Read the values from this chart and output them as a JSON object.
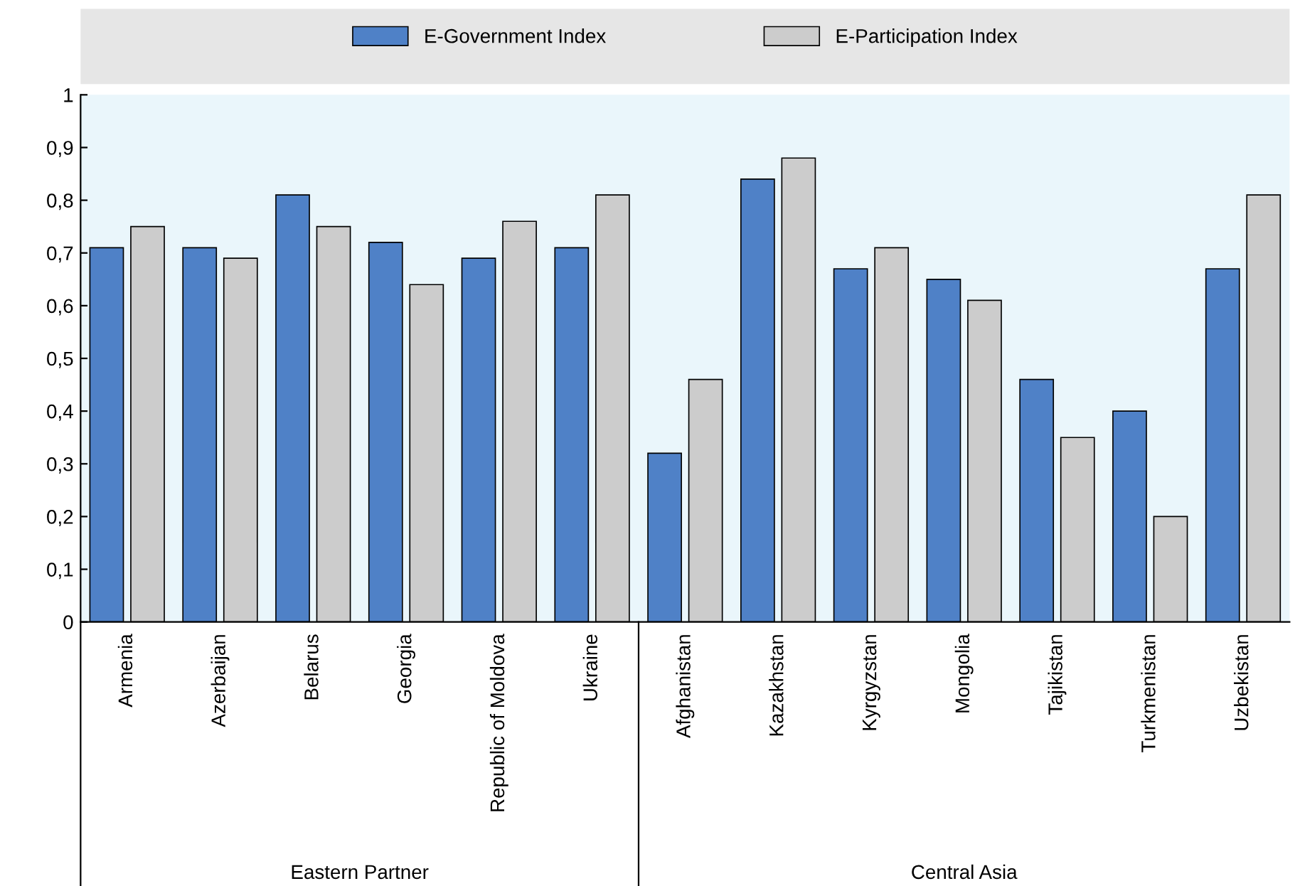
{
  "chart_data": {
    "type": "bar",
    "categories": [
      "Armenia",
      "Azerbaijan",
      "Belarus",
      "Georgia",
      "Republic of Moldova",
      "Ukraine",
      "Afghanistan",
      "Kazakhstan",
      "Kyrgyzstan",
      "Mongolia",
      "Tajikistan",
      "Turkmenistan",
      "Uzbekistan"
    ],
    "series": [
      {
        "name": "E-Government Index",
        "color": "#4f81c7",
        "values": [
          0.71,
          0.71,
          0.81,
          0.72,
          0.69,
          0.71,
          0.32,
          0.84,
          0.67,
          0.65,
          0.46,
          0.4,
          0.67
        ]
      },
      {
        "name": "E-Participation Index",
        "color": "#cccccc",
        "values": [
          0.75,
          0.69,
          0.75,
          0.64,
          0.76,
          0.81,
          0.46,
          0.88,
          0.71,
          0.61,
          0.35,
          0.2,
          0.81
        ]
      }
    ],
    "ylim": [
      0,
      1
    ],
    "yticks": [
      0,
      {
        "value": 0.1,
        "label": "0,1"
      },
      {
        "value": 0.2,
        "label": "0,2"
      },
      {
        "value": 0.3,
        "label": "0,3"
      },
      {
        "value": 0.4,
        "label": "0,4"
      },
      {
        "value": 0.5,
        "label": "0,5"
      },
      {
        "value": 0.6,
        "label": "0,6"
      },
      {
        "value": 0.7,
        "label": "0,7"
      },
      {
        "value": 0.8,
        "label": "0,8"
      },
      {
        "value": 0.9,
        "label": "0,9"
      },
      1
    ],
    "annotations": [
      "Eastern Partner",
      "Central Asia"
    ],
    "grid": false,
    "legend": "top"
  }
}
